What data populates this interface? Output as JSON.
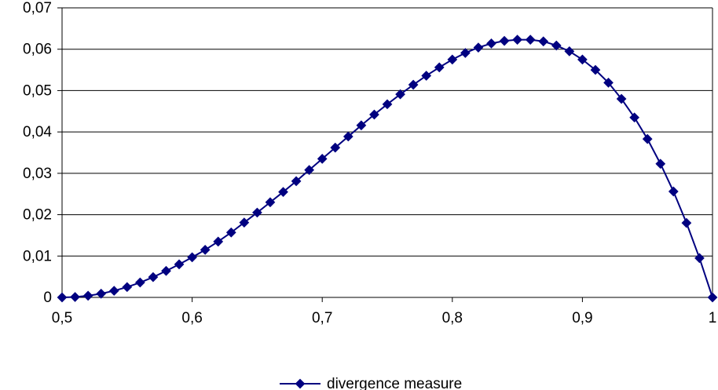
{
  "chart_data": {
    "type": "line",
    "title": "",
    "xlabel": "",
    "ylabel": "",
    "xlim": [
      0.5,
      1.0
    ],
    "ylim": [
      0,
      0.07
    ],
    "x_ticks": [
      0.5,
      0.6,
      0.7,
      0.8,
      0.9,
      1.0
    ],
    "x_tick_labels": [
      "0,5",
      "0,6",
      "0,7",
      "0,8",
      "0,9",
      "1"
    ],
    "y_ticks": [
      0,
      0.01,
      0.02,
      0.03,
      0.04,
      0.05,
      0.06,
      0.07
    ],
    "y_tick_labels": [
      "0",
      "0,01",
      "0,02",
      "0,03",
      "0,04",
      "0,05",
      "0,06",
      "0,07"
    ],
    "grid": "horizontal",
    "legend_position": "bottom-center",
    "series": [
      {
        "name": "divergence measure",
        "color": "#000080",
        "marker": "diamond",
        "x": [
          0.5,
          0.51,
          0.52,
          0.53,
          0.54,
          0.55,
          0.56,
          0.57,
          0.58,
          0.59,
          0.6,
          0.61,
          0.62,
          0.63,
          0.64,
          0.65,
          0.66,
          0.67,
          0.68,
          0.69,
          0.7,
          0.71,
          0.72,
          0.73,
          0.74,
          0.75,
          0.76,
          0.77,
          0.78,
          0.79,
          0.8,
          0.81,
          0.82,
          0.83,
          0.84,
          0.85,
          0.86,
          0.87,
          0.88,
          0.89,
          0.9,
          0.91,
          0.92,
          0.93,
          0.94,
          0.95,
          0.96,
          0.97,
          0.98,
          0.99,
          1.0
        ],
        "y": [
          0,
          0.0001,
          0.0004,
          0.0009,
          0.0016,
          0.0025,
          0.0036,
          0.0049,
          0.0064,
          0.008,
          0.0097,
          0.0115,
          0.0135,
          0.0157,
          0.0181,
          0.0205,
          0.023,
          0.0255,
          0.0281,
          0.0308,
          0.0335,
          0.0362,
          0.0389,
          0.0416,
          0.0442,
          0.0467,
          0.0491,
          0.0514,
          0.0536,
          0.0556,
          0.0575,
          0.0591,
          0.0604,
          0.0614,
          0.062,
          0.0623,
          0.0623,
          0.0619,
          0.0609,
          0.0595,
          0.0575,
          0.055,
          0.0519,
          0.048,
          0.0435,
          0.0383,
          0.0323,
          0.0256,
          0.018,
          0.0095,
          0
        ]
      }
    ]
  }
}
